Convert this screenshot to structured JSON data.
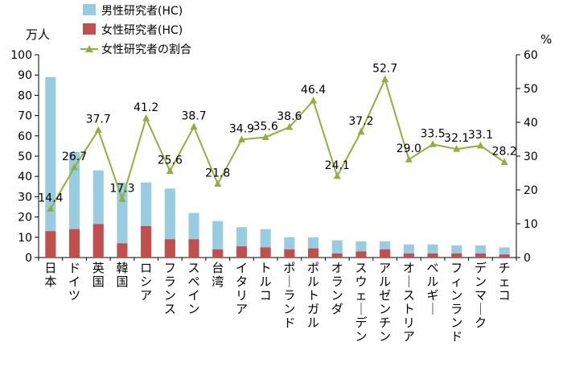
{
  "chart_data": {
    "type": "bar",
    "categories": [
      "日本",
      "ドイツ",
      "英国",
      "韓国",
      "ロシア",
      "フランス",
      "スペイン",
      "台湾",
      "イタリア",
      "トルコ",
      "ポーランド",
      "ポルトガル",
      "オランダ",
      "スウェーデン",
      "アルゼンチン",
      "オーストリア",
      "ベルギー",
      "フィンランド",
      "デンマーク",
      "チェコ"
    ],
    "series": [
      {
        "name": "男性研究者(HC)",
        "kind": "bar",
        "color": "#99cce0",
        "values": [
          89,
          52,
          43,
          37,
          37,
          34,
          22,
          18,
          15,
          14,
          10,
          10,
          8.5,
          8,
          8,
          6.5,
          6.5,
          6,
          6,
          5
        ]
      },
      {
        "name": "女性研究者(HC)",
        "kind": "bar",
        "color": "#c0504d",
        "values": [
          13,
          14,
          16.5,
          7,
          15.5,
          9,
          9,
          4,
          5.5,
          5,
          4,
          4.5,
          2,
          3,
          4,
          2,
          2,
          2,
          2,
          1.5
        ]
      },
      {
        "name": "女性研究者の割合",
        "kind": "line",
        "axis": "right",
        "color": "#8fb040",
        "values": [
          14.4,
          26.7,
          37.7,
          17.3,
          41.2,
          25.6,
          38.7,
          21.8,
          34.9,
          35.6,
          38.6,
          46.4,
          24.1,
          37.2,
          52.7,
          29.0,
          33.5,
          32.1,
          33.1,
          28.2
        ],
        "labels": [
          "14.4",
          "26.7",
          "37.7",
          "17.3",
          "41.2",
          "25.6",
          "38.7",
          "21.8",
          "34.9",
          "35.6",
          "38.6",
          "46.4",
          "24.1",
          "37.2",
          "52.7",
          "29.0",
          "33.5",
          "32.1",
          "33.1",
          "28.2"
        ]
      }
    ],
    "ylabel": "万人",
    "y2label": "%",
    "ylim": [
      0,
      100
    ],
    "y2lim": [
      0,
      60
    ],
    "yticks": [
      "0",
      "10",
      "20",
      "30",
      "40",
      "50",
      "60",
      "70",
      "80",
      "90",
      "100"
    ],
    "y2ticks": [
      "0",
      "10",
      "20",
      "30",
      "40",
      "50",
      "60"
    ],
    "legend_position": "top-left",
    "grid": false
  }
}
